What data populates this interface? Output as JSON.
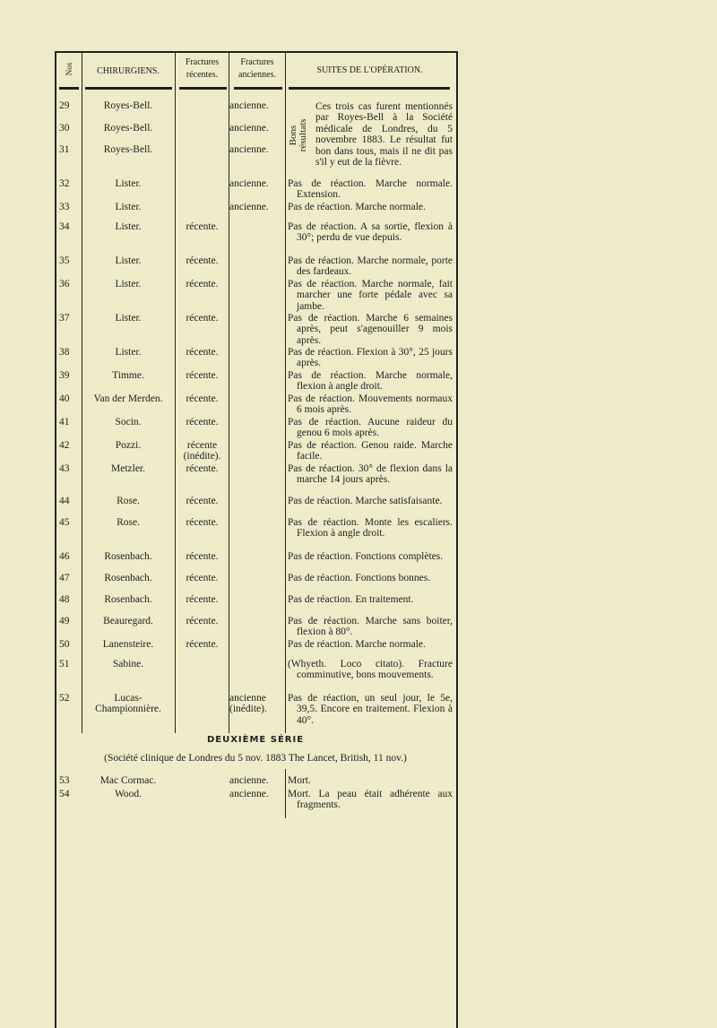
{
  "headers": {
    "no": "Nos",
    "surgeons": "CHIRURGIENS.",
    "recent": "Fractures récentes.",
    "old": "Fractures anciennes.",
    "outcome": "SUITES DE L'OPÉRATION."
  },
  "bracket_label": "Bons résultats",
  "rows": [
    {
      "no": "29",
      "surgeon": "Royes-Bell.",
      "recent": "",
      "old": "ancienne.",
      "outcome": ""
    },
    {
      "no": "30",
      "surgeon": "Royes-Bell.",
      "recent": "",
      "old": "ancienne.",
      "outcome": ""
    },
    {
      "no": "31",
      "surgeon": "Royes-Bell.",
      "recent": "",
      "old": "ancienne.",
      "outcome": ""
    },
    {
      "no": "32",
      "surgeon": "Lister.",
      "recent": "",
      "old": "ancienne.",
      "outcome": "Pas de réaction. Marche normale. Extension."
    },
    {
      "no": "33",
      "surgeon": "Lister.",
      "recent": "",
      "old": "ancienne.",
      "outcome": "Pas de réaction. Marche normale."
    },
    {
      "no": "34",
      "surgeon": "Lister.",
      "recent": "récente.",
      "old": "",
      "outcome": "Pas de réaction. A sa sortie, flexion à 30°; perdu de vue depuis."
    },
    {
      "no": "35",
      "surgeon": "Lister.",
      "recent": "récente.",
      "old": "",
      "outcome": "Pas de réaction. Marche normale, porte des fardeaux."
    },
    {
      "no": "36",
      "surgeon": "Lister.",
      "recent": "récente.",
      "old": "",
      "outcome": "Pas de réaction. Marche normale, fait marcher une forte pédale avec sa jambe."
    },
    {
      "no": "37",
      "surgeon": "Lister.",
      "recent": "récente.",
      "old": "",
      "outcome": "Pas de réaction. Marche 6 semaines après, peut s'agenouiller 9 mois après."
    },
    {
      "no": "38",
      "surgeon": "Lister.",
      "recent": "récente.",
      "old": "",
      "outcome": "Pas de réaction. Flexion à 30°, 25 jours après."
    },
    {
      "no": "39",
      "surgeon": "Timme.",
      "recent": "récente.",
      "old": "",
      "outcome": "Pas de réaction. Marche normale, flexion à angle droit."
    },
    {
      "no": "40",
      "surgeon": "Van der Merden.",
      "recent": "récente.",
      "old": "",
      "outcome": "Pas de réaction. Mouvements normaux 6 mois après."
    },
    {
      "no": "41",
      "surgeon": "Socin.",
      "recent": "récente.",
      "old": "",
      "outcome": "Pas de réaction. Aucune raideur du genou 6 mois après."
    },
    {
      "no": "42",
      "surgeon": "Pozzi.",
      "recent": "récente (inédite).",
      "old": "",
      "outcome": "Pas de réaction. Genou raide. Marche facile."
    },
    {
      "no": "43",
      "surgeon": "Metzler.",
      "recent": "récente.",
      "old": "",
      "outcome": "Pas de réaction. 30° de flexion dans la marche 14 jours après."
    },
    {
      "no": "44",
      "surgeon": "Rose.",
      "recent": "récente.",
      "old": "",
      "outcome": "Pas de réaction. Marche satisfaisante."
    },
    {
      "no": "45",
      "surgeon": "Rose.",
      "recent": "récente.",
      "old": "",
      "outcome": "Pas de réaction. Monte les escaliers. Flexion à angle droit."
    },
    {
      "no": "46",
      "surgeon": "Rosenbach.",
      "recent": "récente.",
      "old": "",
      "outcome": "Pas de réaction. Fonctions complètes."
    },
    {
      "no": "47",
      "surgeon": "Rosenbach.",
      "recent": "récente.",
      "old": "",
      "outcome": "Pas de réaction. Fonctions bonnes."
    },
    {
      "no": "48",
      "surgeon": "Rosenbach.",
      "recent": "récente.",
      "old": "",
      "outcome": "Pas de réaction. En traitement."
    },
    {
      "no": "49",
      "surgeon": "Beauregard.",
      "recent": "récente.",
      "old": "",
      "outcome": "Pas de réaction. Marche sans boiter, flexion à 80°."
    },
    {
      "no": "50",
      "surgeon": "Lanensteire.",
      "recent": "récente.",
      "old": "",
      "outcome": "Pas de réaction. Marche normale."
    },
    {
      "no": "51",
      "surgeon": "Sabine.",
      "recent": "",
      "old": "",
      "outcome": "(Whyeth. Loco citato). Fracture comminutive, bons mouvements."
    },
    {
      "no": "52",
      "surgeon": "Lucas-Championnière.",
      "recent": "",
      "old": "ancienne (inédite).",
      "outcome": "Pas de réaction, un seul jour, le 5e, 39,5. Encore en traitement. Flexion à 40°."
    }
  ],
  "grouped_outcome": "Ces trois cas furent mentionnés par Royes-Bell à la Société médicale de Londres, du 5 novembre 1883. Le résultat fut bon dans tous, mais il ne dit pas s'il y eut de la fièvre.",
  "series2": {
    "title": "DEUXIÈME SÉRIE",
    "subtitle": "(Société clinique de Londres du 5 nov. 1883 The Lancet, British, 11 nov.)"
  },
  "rows2": [
    {
      "no": "53",
      "surgeon": "Mac Cormac.",
      "old": "ancienne.",
      "outcome": "Mort."
    },
    {
      "no": "54",
      "surgeon": "Wood.",
      "old": "ancienne.",
      "outcome": "Mort. La peau était adhérente aux fragments."
    }
  ]
}
